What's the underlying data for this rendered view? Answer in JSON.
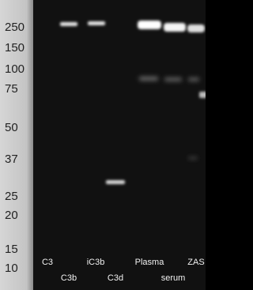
{
  "markers": [
    "250",
    "150",
    "100",
    "75",
    "50",
    "37",
    "25",
    "20",
    "15",
    "10"
  ],
  "lanes": [
    "C3",
    "C3b",
    "iC3b",
    "C3d",
    "Plasma",
    "serum",
    "ZAS"
  ]
}
